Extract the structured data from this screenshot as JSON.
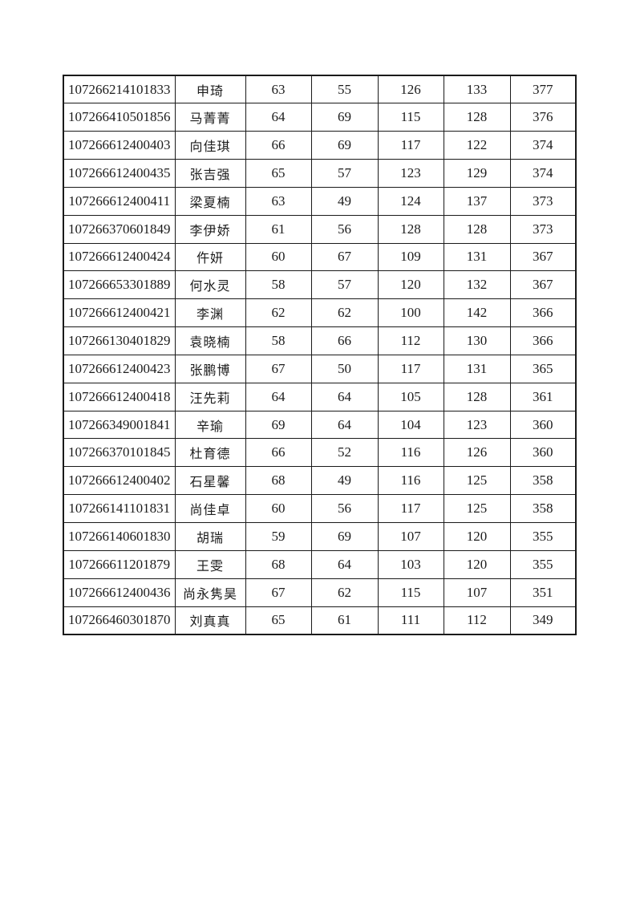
{
  "page": {
    "background_color": "#ffffff",
    "text_color": "#1c1c1c",
    "border_color": "#1a1a1a"
  },
  "table": {
    "cell_names": [
      "candidate-id-cell",
      "candidate-name-cell",
      "score1-cell",
      "score2-cell",
      "score3-cell",
      "score4-cell",
      "total-score-cell"
    ],
    "rows": [
      [
        "107266214101833",
        "申琦",
        "63",
        "55",
        "126",
        "133",
        "377"
      ],
      [
        "107266410501856",
        "马菁菁",
        "64",
        "69",
        "115",
        "128",
        "376"
      ],
      [
        "107266612400403",
        "向佳琪",
        "66",
        "69",
        "117",
        "122",
        "374"
      ],
      [
        "107266612400435",
        "张吉强",
        "65",
        "57",
        "123",
        "129",
        "374"
      ],
      [
        "107266612400411",
        "梁夏楠",
        "63",
        "49",
        "124",
        "137",
        "373"
      ],
      [
        "107266370601849",
        "李伊娇",
        "61",
        "56",
        "128",
        "128",
        "373"
      ],
      [
        "107266612400424",
        "仵妍",
        "60",
        "67",
        "109",
        "131",
        "367"
      ],
      [
        "107266653301889",
        "何水灵",
        "58",
        "57",
        "120",
        "132",
        "367"
      ],
      [
        "107266612400421",
        "李渊",
        "62",
        "62",
        "100",
        "142",
        "366"
      ],
      [
        "107266130401829",
        "袁晓楠",
        "58",
        "66",
        "112",
        "130",
        "366"
      ],
      [
        "107266612400423",
        "张鹏博",
        "67",
        "50",
        "117",
        "131",
        "365"
      ],
      [
        "107266612400418",
        "汪先莉",
        "64",
        "64",
        "105",
        "128",
        "361"
      ],
      [
        "107266349001841",
        "辛瑜",
        "69",
        "64",
        "104",
        "123",
        "360"
      ],
      [
        "107266370101845",
        "杜育德",
        "66",
        "52",
        "116",
        "126",
        "360"
      ],
      [
        "107266612400402",
        "石星馨",
        "68",
        "49",
        "116",
        "125",
        "358"
      ],
      [
        "107266141101831",
        "尚佳卓",
        "60",
        "56",
        "117",
        "125",
        "358"
      ],
      [
        "107266140601830",
        "胡瑞",
        "59",
        "69",
        "107",
        "120",
        "355"
      ],
      [
        "107266611201879",
        "王雯",
        "68",
        "64",
        "103",
        "120",
        "355"
      ],
      [
        "107266612400436",
        "尚永隽昊",
        "67",
        "62",
        "115",
        "107",
        "351"
      ],
      [
        "107266460301870",
        "刘真真",
        "65",
        "61",
        "111",
        "112",
        "349"
      ]
    ]
  }
}
